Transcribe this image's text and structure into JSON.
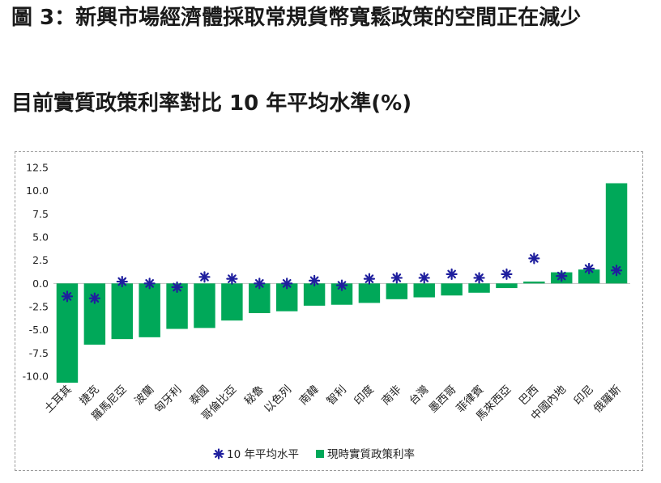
{
  "figure": {
    "title": "圖 3：新興市場經濟體採取常規貨幣寬鬆政策的空間正在減少",
    "subtitle": "目前實質政策利率對比 10 年平均水準(%)"
  },
  "colors": {
    "bar": "#00a859",
    "marker": "#1f1f9e"
  },
  "chart_data": {
    "type": "bar",
    "categories": [
      "土耳其",
      "捷克",
      "羅馬尼亞",
      "波蘭",
      "匈牙利",
      "泰國",
      "哥倫比亞",
      "秘魯",
      "以色列",
      "南韓",
      "智利",
      "印度",
      "南非",
      "台灣",
      "墨西哥",
      "菲律賓",
      "馬來西亞",
      "巴西",
      "中國內地",
      "印尼",
      "俄羅斯"
    ],
    "series": [
      {
        "name": "現時實質政策利率",
        "marker": "square",
        "values": [
          -10.7,
          -6.6,
          -6.0,
          -5.8,
          -4.9,
          -4.8,
          -4.0,
          -3.2,
          -3.0,
          -2.4,
          -2.3,
          -2.1,
          -1.7,
          -1.5,
          -1.3,
          -1.0,
          -0.5,
          0.2,
          1.2,
          1.5,
          10.8
        ]
      },
      {
        "name": "10 年平均水平",
        "marker": "asterisk",
        "values": [
          -1.4,
          -1.6,
          0.2,
          0.0,
          -0.4,
          0.7,
          0.5,
          0.0,
          0.0,
          0.3,
          -0.2,
          0.5,
          0.6,
          0.6,
          1.0,
          0.6,
          1.0,
          2.7,
          0.8,
          1.6,
          1.4
        ]
      }
    ],
    "yticks": [
      "12.5",
      "10.0",
      "7.5",
      "5.0",
      "2.5",
      "0.0",
      "-2.5",
      "-5.0",
      "-7.5",
      "-10.0"
    ],
    "ylim": [
      -11,
      13
    ],
    "legend": "bottom",
    "grid": false
  }
}
